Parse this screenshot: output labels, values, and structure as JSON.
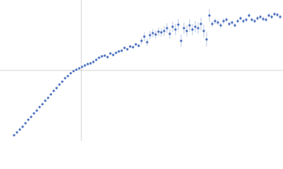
{
  "chart_data": {
    "type": "scatter",
    "x": [
      -95,
      -91,
      -87,
      -83,
      -79,
      -75,
      -71,
      -67,
      -63,
      -59,
      -55,
      -51,
      -47,
      -43,
      -39,
      -35,
      -31,
      -27,
      -23,
      -19,
      -15,
      -11,
      -7,
      -3,
      1,
      5,
      9,
      13,
      17,
      21,
      25,
      29,
      33,
      37,
      41,
      45,
      49,
      53,
      57,
      61,
      65,
      69,
      73,
      77,
      81,
      85,
      89,
      93,
      97,
      101,
      105,
      109,
      113,
      117,
      121,
      125,
      129,
      133,
      137,
      141,
      145,
      149,
      153,
      157,
      161,
      165,
      169,
      173,
      177,
      181,
      185,
      189,
      193,
      197,
      201,
      205,
      209,
      213,
      217,
      221,
      225,
      229,
      233,
      237,
      241,
      245,
      249,
      253,
      257,
      261,
      265,
      269,
      273,
      277,
      281
    ],
    "series": [
      {
        "color": "#4a6fbf",
        "error_color": "#a9b9dc",
        "values": [
          -92,
          -88,
          -84,
          -80,
          -75,
          -70,
          -66,
          -61,
          -57,
          -52,
          -48,
          -43,
          -39,
          -34,
          -29,
          -25,
          -20,
          -16,
          -11,
          -8,
          -4,
          -1,
          1,
          3,
          5,
          7,
          9,
          10,
          12,
          15,
          18,
          20,
          21,
          19,
          24,
          22,
          25,
          27,
          28,
          32,
          30,
          34,
          33,
          37,
          35,
          42,
          48,
          40,
          50,
          53,
          51,
          55,
          54,
          56,
          60,
          52,
          62,
          58,
          65,
          42,
          60,
          56,
          64,
          58,
          62,
          60,
          66,
          56,
          44,
          78,
          66,
          70,
          68,
          64,
          70,
          72,
          66,
          68,
          64,
          70,
          74,
          70,
          72,
          78,
          72,
          70,
          74,
          76,
          73,
          72,
          78,
          76,
          80,
          79,
          76
        ],
        "errors": [
          1,
          1,
          1,
          1,
          1,
          1,
          1,
          1,
          1,
          1,
          1,
          1,
          1,
          1,
          1,
          1,
          1,
          1,
          1,
          1,
          1,
          1,
          1,
          1,
          1,
          2,
          2,
          2,
          2,
          2,
          2,
          2,
          2,
          2,
          2,
          2,
          2,
          2,
          2,
          2,
          2,
          2,
          2,
          2,
          2,
          5,
          6,
          5,
          6,
          6,
          6,
          6,
          6,
          7,
          7,
          7,
          7,
          8,
          8,
          9,
          8,
          8,
          9,
          8,
          8,
          8,
          9,
          9,
          10,
          9,
          4,
          4,
          4,
          4,
          4,
          3,
          3,
          3,
          3,
          3,
          3,
          3,
          3,
          3,
          3,
          3,
          3,
          3,
          3,
          3,
          3,
          3,
          3,
          3,
          3
        ]
      }
    ],
    "xlim": [
      -115,
      285
    ],
    "ylim": [
      -100,
      100
    ],
    "reference_lines": {
      "x": 0,
      "y": 0,
      "color": "#d0d0d0"
    }
  }
}
